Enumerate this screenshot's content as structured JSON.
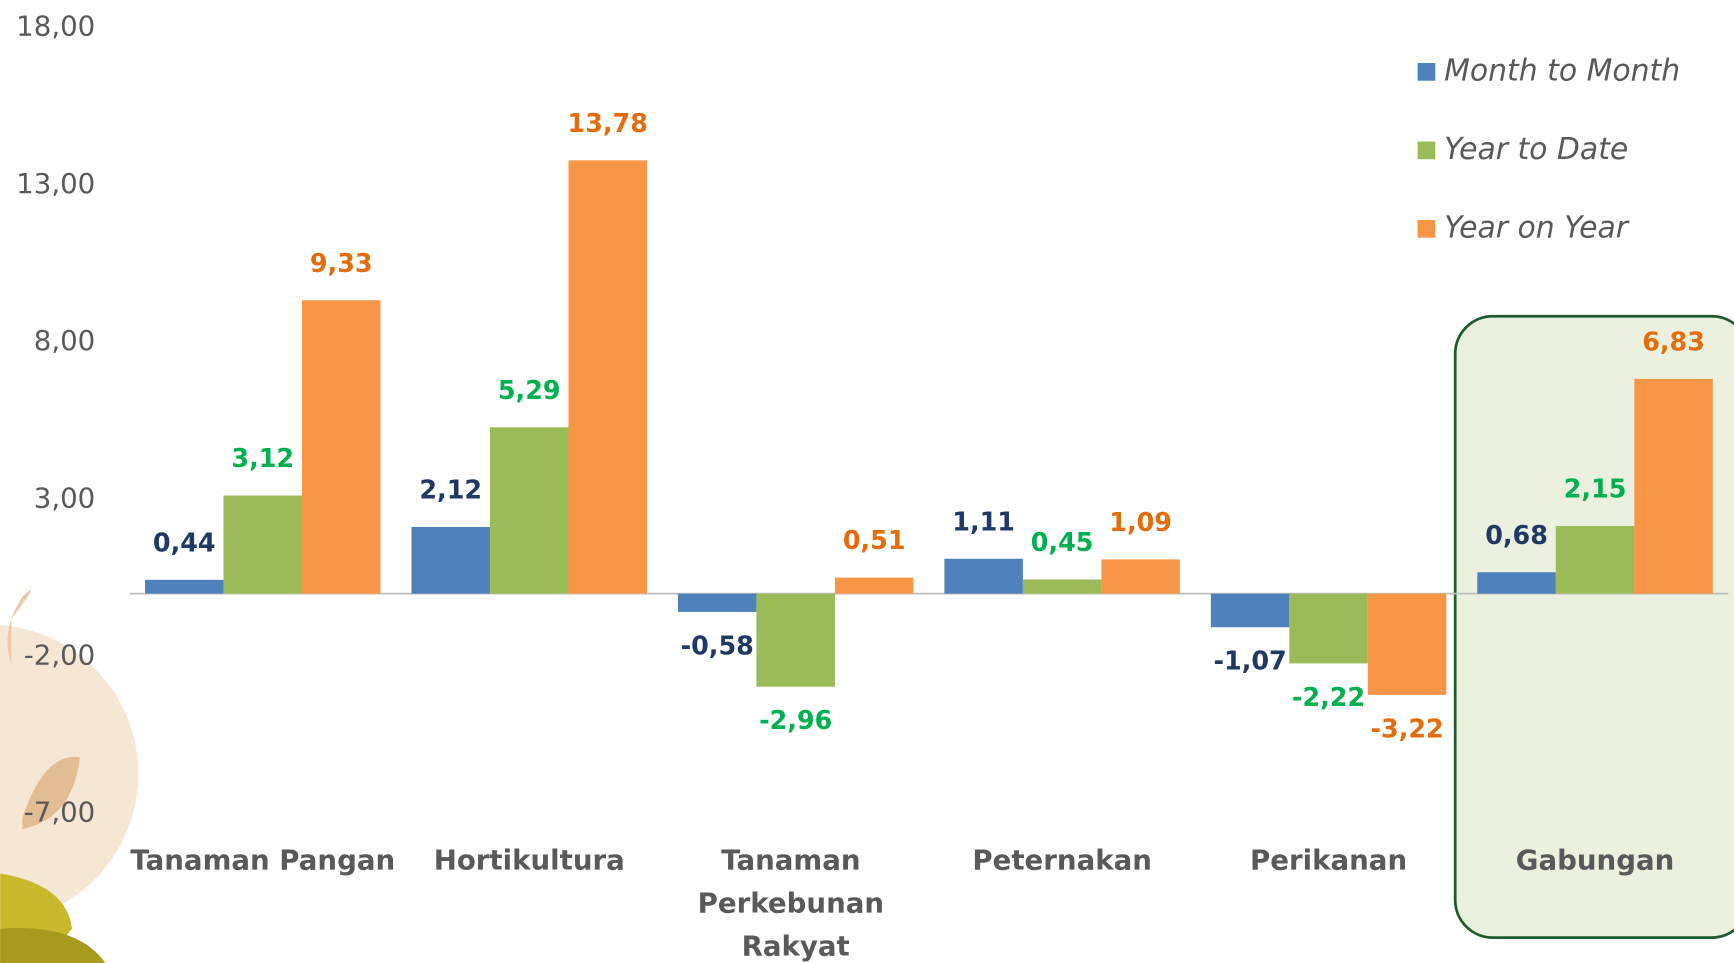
{
  "chart_data": {
    "type": "bar",
    "categories": [
      "Tanaman Pangan",
      "Hortikultura",
      "Tanaman Perkebunan Rakyat",
      "Peternakan",
      "Perikanan",
      "Gabungan"
    ],
    "series": [
      {
        "name": "Month to Month",
        "color": "#4f81bd",
        "label_color": "#1f3864",
        "values": [
          0.44,
          2.12,
          -0.58,
          1.11,
          -1.07,
          0.68
        ],
        "value_labels": [
          "0,44",
          "2,12",
          "-0,58",
          "1,11",
          "-1,07",
          "0,68"
        ]
      },
      {
        "name": "Year to Date",
        "color": "#9bbb59",
        "label_color": "#00b050",
        "values": [
          3.12,
          5.29,
          -2.96,
          0.45,
          -2.22,
          2.15
        ],
        "value_labels": [
          "3,12",
          "5,29",
          "-2,96",
          "0,45",
          "-2,22",
          "2,15"
        ]
      },
      {
        "name": "Year on Year",
        "color": "#f79646",
        "label_color": "#e46c0a",
        "values": [
          9.33,
          13.78,
          0.51,
          1.09,
          -3.22,
          6.83
        ],
        "value_labels": [
          "9,33",
          "13,78",
          "0,51",
          "1,09",
          "-3,22",
          "6,83"
        ]
      }
    ],
    "ylim": [
      -7,
      18
    ],
    "yticks": [
      {
        "value": -7,
        "label": "-7,00"
      },
      {
        "value": -2,
        "label": "-2,00"
      },
      {
        "value": 3,
        "label": "3,00"
      },
      {
        "value": 8,
        "label": "8,00"
      },
      {
        "value": 13,
        "label": "13,00"
      },
      {
        "value": 18,
        "label": "18,00"
      }
    ],
    "grid": false,
    "legend": "upper right"
  }
}
